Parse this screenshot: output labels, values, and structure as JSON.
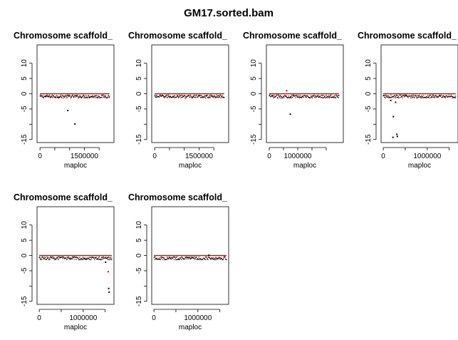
{
  "figure": {
    "title": "GM17.sorted.bam"
  },
  "chart_data": [
    {
      "type": "scatter",
      "title": "Chromosome scaffold_",
      "xlabel": "maploc",
      "ylabel": "",
      "xlim": [
        -100000,
        2500000
      ],
      "ylim": [
        -16,
        16
      ],
      "xticks": [
        0,
        500000,
        1000000,
        1500000,
        2000000
      ],
      "xtick_labels": [
        "0",
        "",
        "",
        "1500000",
        ""
      ],
      "yticks": [
        -15,
        -10,
        -5,
        0,
        5,
        10
      ],
      "ytick_labels": [
        "-15",
        "",
        "-5",
        "0",
        "5",
        "10"
      ],
      "baseline": {
        "x_start": 0,
        "x_end": 2350000,
        "y": 0,
        "color": "#ff0000"
      },
      "cloud": {
        "x_start": 0,
        "x_end": 2350000,
        "y_center": -0.9,
        "spread": 0.5,
        "color": "#000000"
      },
      "points": [
        {
          "x": 940000,
          "y": -5.5,
          "color": "#000000"
        },
        {
          "x": 1180000,
          "y": -9.9,
          "color": "#000000"
        }
      ]
    },
    {
      "type": "scatter",
      "title": "Chromosome scaffold_",
      "xlabel": "maploc",
      "ylabel": "",
      "xlim": [
        -100000,
        2500000
      ],
      "ylim": [
        -16,
        16
      ],
      "xticks": [
        0,
        500000,
        1000000,
        1500000,
        2000000
      ],
      "xtick_labels": [
        "0",
        "",
        "",
        "1500000",
        ""
      ],
      "yticks": [
        -15,
        -10,
        -5,
        0,
        5,
        10
      ],
      "ytick_labels": [
        "-15",
        "",
        "-5",
        "0",
        "5",
        "10"
      ],
      "baseline": {
        "x_start": 0,
        "x_end": 2350000,
        "y": 0,
        "color": "#ff0000"
      },
      "cloud": {
        "x_start": 0,
        "x_end": 2350000,
        "y_center": -0.9,
        "spread": 0.5,
        "color": "#000000"
      },
      "points": []
    },
    {
      "type": "scatter",
      "title": "Chromosome scaffold_",
      "xlabel": "maploc",
      "ylabel": "",
      "xlim": [
        -100000,
        2600000
      ],
      "ylim": [
        -16,
        16
      ],
      "xticks": [
        0,
        500000,
        1000000,
        1500000,
        2000000
      ],
      "xtick_labels": [
        "0",
        "",
        "1000000",
        "",
        ""
      ],
      "yticks": [
        -15,
        -10,
        -5,
        0,
        5,
        10
      ],
      "ytick_labels": [
        "-15",
        "",
        "-5",
        "0",
        "5",
        "10"
      ],
      "baseline": {
        "x_start": 0,
        "x_end": 2450000,
        "y": 0,
        "color": "#ff0000"
      },
      "cloud": {
        "x_start": 0,
        "x_end": 2450000,
        "y_center": -0.9,
        "spread": 0.5,
        "color": "#000000"
      },
      "points": [
        {
          "x": 610000,
          "y": 1.0,
          "color": "#ff0000"
        },
        {
          "x": 740000,
          "y": -6.7,
          "color": "#000000"
        }
      ]
    },
    {
      "type": "scatter",
      "title": "Chromosome scaffold_",
      "xlabel": "maploc",
      "ylabel": "",
      "xlim": [
        -50000,
        1700000
      ],
      "ylim": [
        -16,
        16
      ],
      "xticks": [
        0,
        500000,
        1000000,
        1500000
      ],
      "xtick_labels": [
        "0",
        "",
        "1000000",
        ""
      ],
      "yticks": [
        -15,
        -10,
        -5,
        0,
        5,
        10
      ],
      "ytick_labels": [
        "-15",
        "",
        "-5",
        "0",
        "5",
        "10"
      ],
      "baseline": {
        "x_start": 0,
        "x_end": 1650000,
        "y": 0,
        "color": "#ff0000"
      },
      "cloud": {
        "x_start": 0,
        "x_end": 1650000,
        "y_center": -0.9,
        "spread": 0.5,
        "color": "#000000"
      },
      "points": [
        {
          "x": 170000,
          "y": -2.2,
          "color": "#000000"
        },
        {
          "x": 230000,
          "y": -7.5,
          "color": "#000000"
        },
        {
          "x": 280000,
          "y": -2.8,
          "color": "#000000"
        },
        {
          "x": 310000,
          "y": -13.3,
          "color": "#000000"
        },
        {
          "x": 320000,
          "y": -14.0,
          "color": "#000000"
        },
        {
          "x": 220000,
          "y": -14.3,
          "color": "#000000"
        }
      ]
    },
    {
      "type": "scatter",
      "title": "Chromosome scaffold_",
      "xlabel": "maploc",
      "ylabel": "",
      "xlim": [
        -50000,
        1700000
      ],
      "ylim": [
        -16,
        16
      ],
      "xticks": [
        0,
        500000,
        1000000,
        1500000
      ],
      "xtick_labels": [
        "0",
        "",
        "1000000",
        ""
      ],
      "yticks": [
        -15,
        -10,
        -5,
        0,
        5,
        10
      ],
      "ytick_labels": [
        "-15",
        "",
        "-5",
        "0",
        "5",
        "10"
      ],
      "baseline": {
        "x_start": 0,
        "x_end": 1650000,
        "y": 0,
        "color": "#ff0000"
      },
      "cloud": {
        "x_start": 0,
        "x_end": 1650000,
        "y_center": -0.9,
        "spread": 0.5,
        "color": "#000000"
      },
      "points": [
        {
          "x": 1510000,
          "y": -2.2,
          "color": "#000000"
        },
        {
          "x": 1570000,
          "y": -5.3,
          "color": "#ff0000"
        },
        {
          "x": 1580000,
          "y": -10.8,
          "color": "#000000"
        },
        {
          "x": 1590000,
          "y": -12.0,
          "color": "#000000"
        }
      ]
    },
    {
      "type": "scatter",
      "title": "Chromosome scaffold_",
      "xlabel": "maploc",
      "ylabel": "",
      "xlim": [
        -50000,
        1700000
      ],
      "ylim": [
        -16,
        16
      ],
      "xticks": [
        0,
        500000,
        1000000,
        1500000
      ],
      "xtick_labels": [
        "0",
        "",
        "1000000",
        ""
      ],
      "yticks": [
        -15,
        -10,
        -5,
        0,
        5,
        10
      ],
      "ytick_labels": [
        "-15",
        "",
        "-5",
        "0",
        "5",
        "10"
      ],
      "baseline": {
        "x_start": 0,
        "x_end": 1650000,
        "y": 0,
        "color": "#ff0000"
      },
      "cloud": {
        "x_start": 0,
        "x_end": 1650000,
        "y_center": -0.9,
        "spread": 0.5,
        "color": "#000000"
      },
      "points": [
        {
          "x": 1250000,
          "y": 0.1,
          "color": "#000000"
        }
      ]
    }
  ]
}
